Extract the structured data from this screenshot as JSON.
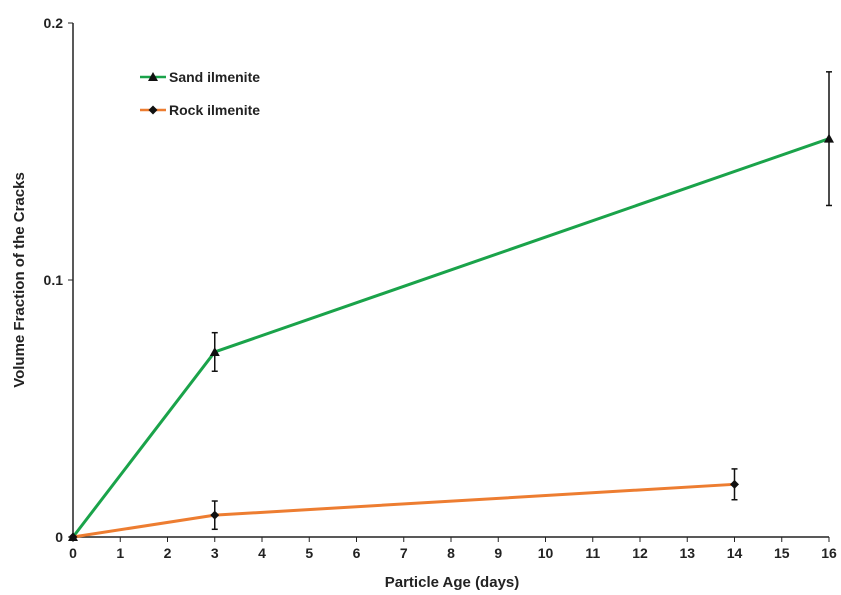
{
  "chart_data": {
    "type": "line",
    "xlabel": "Particle Age (days)",
    "ylabel": "Volume Fraction of the Cracks",
    "xlim": [
      0,
      16
    ],
    "ylim": [
      0,
      0.2
    ],
    "xticks": [
      "0",
      "1",
      "2",
      "3",
      "4",
      "5",
      "6",
      "7",
      "8",
      "9",
      "10",
      "11",
      "12",
      "13",
      "14",
      "15",
      "16"
    ],
    "yticks": [
      "0",
      "0.1",
      "0.2"
    ],
    "legend_position": "top-left",
    "grid": false,
    "series": [
      {
        "name": "Sand ilmenite",
        "color": "#1aa34a",
        "marker": "triangle",
        "x": [
          0,
          3,
          16
        ],
        "y": [
          0,
          0.072,
          0.155
        ],
        "err": [
          0,
          0.0075,
          0.026
        ]
      },
      {
        "name": "Rock ilmenite",
        "color": "#ed7d31",
        "marker": "diamond",
        "x": [
          0,
          3,
          14
        ],
        "y": [
          0,
          0.0085,
          0.0205
        ],
        "err": [
          0,
          0.0055,
          0.006
        ]
      }
    ]
  }
}
